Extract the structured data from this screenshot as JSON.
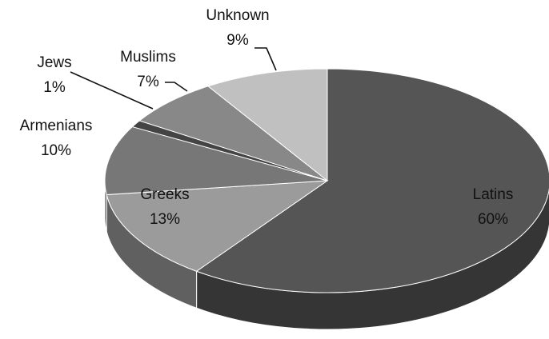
{
  "chart_data": {
    "type": "pie",
    "title": "",
    "slices": [
      {
        "label": "Latins",
        "value": 60,
        "value_label": "60%",
        "color": "#555555"
      },
      {
        "label": "Greeks",
        "value": 13,
        "value_label": "13%",
        "color": "#9b9b9b"
      },
      {
        "label": "Armenians",
        "value": 10,
        "value_label": "10%",
        "color": "#777777"
      },
      {
        "label": "Jews",
        "value": 1,
        "value_label": "1%",
        "color": "#444444"
      },
      {
        "label": "Muslims",
        "value": 7,
        "value_label": "7%",
        "color": "#888888"
      },
      {
        "label": "Unknown",
        "value": 9,
        "value_label": "9%",
        "color": "#c0c0c0"
      }
    ],
    "style": "3d-pie",
    "legend": "none"
  }
}
